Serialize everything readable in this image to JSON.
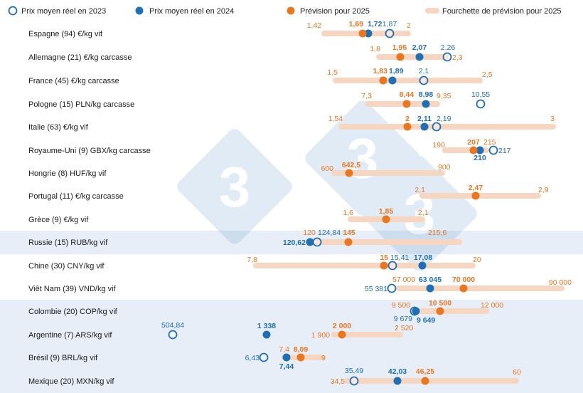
{
  "chart_data": {
    "type": "dot-range",
    "legend": {
      "placement": "top",
      "entries": [
        {
          "key": "y2023",
          "label": "Prix moyen réel en 2023",
          "marker": "open-circle",
          "color": "#1f6fb5"
        },
        {
          "key": "y2024",
          "label": "Prix moyen réel en 2024",
          "marker": "filled-circle",
          "color": "#1f6fb5"
        },
        {
          "key": "y2025",
          "label": "Prévision pour 2025",
          "marker": "filled-circle",
          "color": "#e87722"
        },
        {
          "key": "range",
          "label": "Fourchette de prévision pour 2025",
          "marker": "bar",
          "color": "#f7d6c1"
        }
      ]
    },
    "colors": {
      "blue": "#1f6fb5",
      "orange": "#e87722",
      "range": "#f7d6c1",
      "band": "#e7eef7"
    },
    "rows": [
      {
        "label": "Espagne (94) €/kg vif",
        "low": "1,42",
        "high": "2",
        "y2023": "1,87",
        "y2024": "1,72",
        "y2025": "1,69"
      },
      {
        "label": "Allemagne (21) €/kg carcasse",
        "low": "1,8",
        "high": "2,3",
        "y2023": "2,26",
        "y2024": "2,07",
        "y2025": "1,95"
      },
      {
        "label": "France (45) €/kg carcasse",
        "low": "1,5",
        "high": "2,5",
        "y2023": "2,1",
        "y2024": "1,89",
        "y2025": "1,83"
      },
      {
        "label": "Pologne (15) PLN/kg carcasse",
        "low": "7,3",
        "high": "9,35",
        "y2023": "10,55",
        "y2024": "8,98",
        "y2025": "8,44"
      },
      {
        "label": "Italie (63) €/kg vif",
        "low": "1,54",
        "high": "3",
        "y2023": "2,19",
        "y2024": "2,11",
        "y2025": "2"
      },
      {
        "label": "Royaume-Uni (9) GBX/kg carcasse",
        "low": "190",
        "high": "215",
        "y2023": "217",
        "y2024": "210",
        "y2025": "207"
      },
      {
        "label": "Hongrie (8) HUF/kg vif",
        "low": "600",
        "high": "900",
        "y2023": null,
        "y2024": null,
        "y2025": "642,5"
      },
      {
        "label": "Portugal (11) €/kg carcasse",
        "low": "2,1",
        "high": "2,9",
        "y2023": null,
        "y2024": null,
        "y2025": "2,47"
      },
      {
        "label": "Grèce (9) €/kg vif",
        "low": "1,6",
        "high": "2,1",
        "y2023": null,
        "y2024": null,
        "y2025": "1,85"
      },
      {
        "label": "Russie (15) RUB/kg vif",
        "low": "120",
        "high": "215,6",
        "y2023": "124,84",
        "y2024": "120,62",
        "y2025": "145"
      },
      {
        "label": "Chine (30) CNY/kg vif",
        "low": "7,8",
        "high": "20",
        "y2023": "15,41",
        "y2024": "17,08",
        "y2025": "15"
      },
      {
        "label": "Viêt Nam (39) VND/kg vif",
        "low": "57 000",
        "high": "90 000",
        "y2023": "55 381",
        "y2024": "63 045",
        "y2025": "70 000"
      },
      {
        "label": "Colombie (20) COP/kg vif",
        "low": "9 500",
        "high": "12 000",
        "y2023": "9 679",
        "y2024": "9 649",
        "y2025": "10 500"
      },
      {
        "label": "Argentine (7) ARS/kg vif",
        "low": "1 900",
        "high": "2 520",
        "y2023": "504,84",
        "y2024": "1 338",
        "y2025": "2 000"
      },
      {
        "label": "Brésil (9) BRL/kg vif",
        "low": "7,4",
        "high": "9",
        "y2023": "6,43",
        "y2024": "7,44",
        "y2025": "8,09"
      },
      {
        "label": "Mexique (20) MXN/kg vif",
        "low": "34,5",
        "high": "60",
        "y2023": "35,49",
        "y2024": "42,03",
        "y2025": "46,25"
      }
    ]
  }
}
